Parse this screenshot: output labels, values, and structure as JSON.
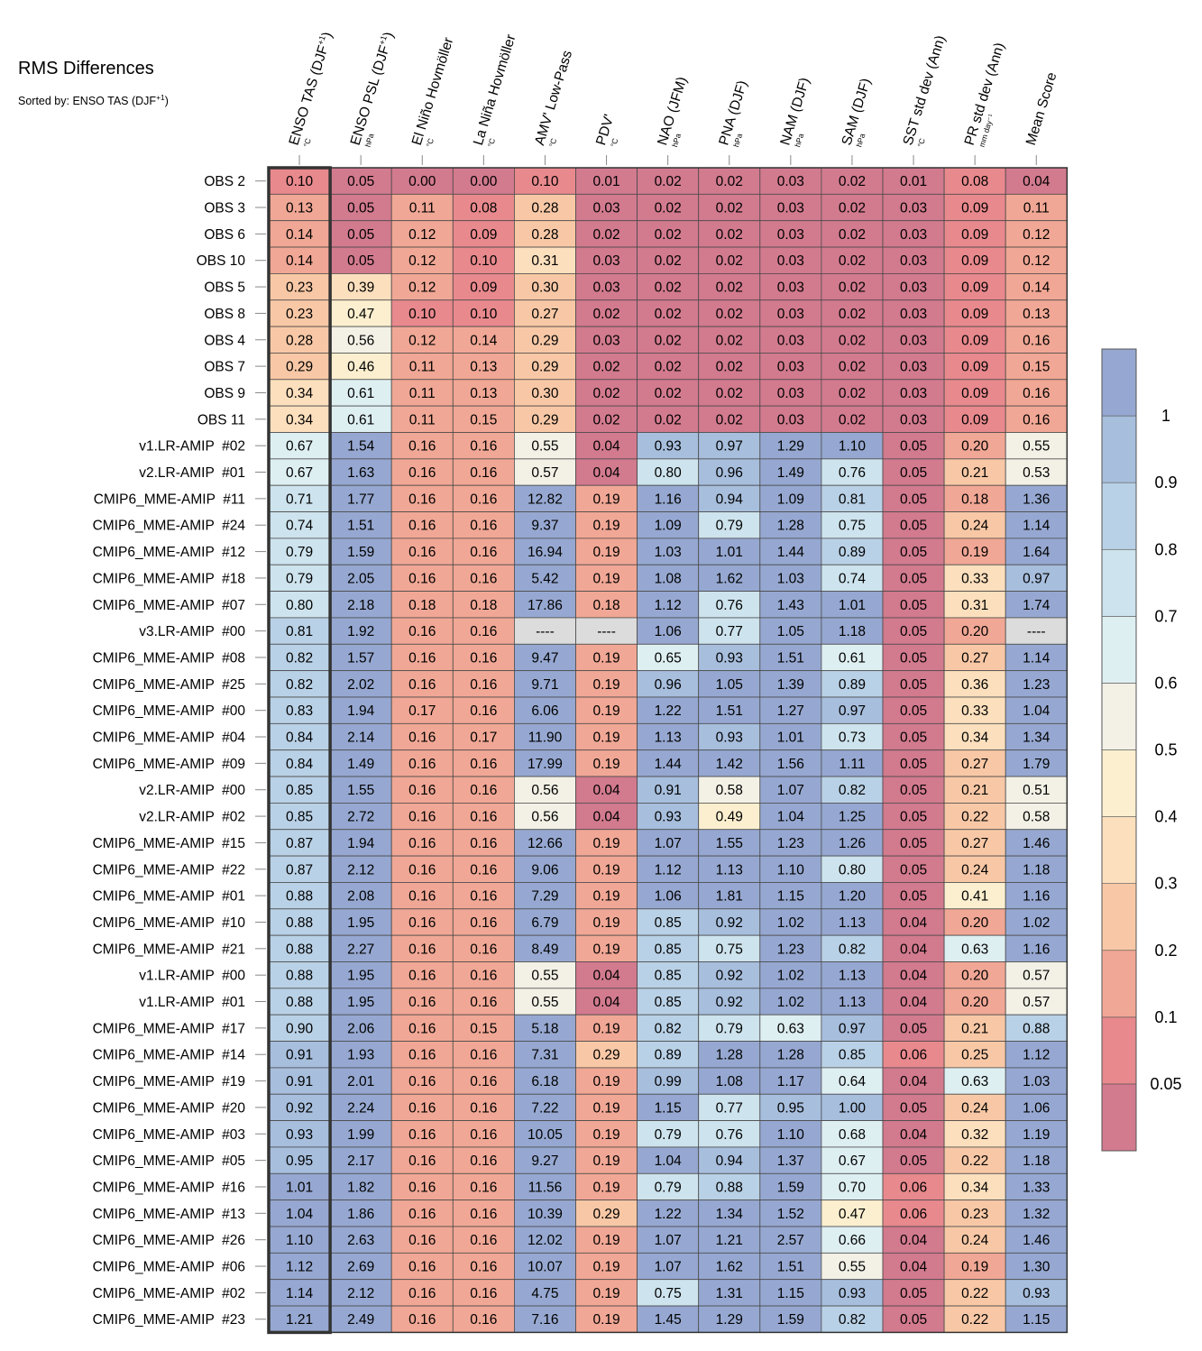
{
  "title": "RMS Differences",
  "subtitle": "Sorted by: ENSO TAS (DJF",
  "subtitle_sup": "+1",
  "subtitle_end": ")",
  "chart_data": {
    "type": "heatmap",
    "title": "RMS Differences",
    "columns": [
      {
        "name": "ENSO TAS (DJF",
        "sup": "+1",
        "end": ")",
        "unit": "°C"
      },
      {
        "name": "ENSO PSL (DJF",
        "sup": "+1",
        "end": ")",
        "unit": "hPa"
      },
      {
        "name": "El Niño Hovmöller",
        "sup": "",
        "end": "",
        "unit": "°C"
      },
      {
        "name": "La Niña Hovmöller",
        "sup": "",
        "end": "",
        "unit": "°C"
      },
      {
        "name": "AMV' Low-Pass",
        "sup": "",
        "end": "",
        "unit": "°C"
      },
      {
        "name": "PDV'",
        "sup": "",
        "end": "",
        "unit": "°C"
      },
      {
        "name": "NAO (JFM)",
        "sup": "",
        "end": "",
        "unit": "hPa"
      },
      {
        "name": "PNA (DJF)",
        "sup": "",
        "end": "",
        "unit": "hPa"
      },
      {
        "name": "NAM (DJF)",
        "sup": "",
        "end": "",
        "unit": "hPa"
      },
      {
        "name": "SAM (DJF)",
        "sup": "",
        "end": "",
        "unit": "hPa"
      },
      {
        "name": "SST std dev (Ann)",
        "sup": "",
        "end": "",
        "unit": "°C"
      },
      {
        "name": "PR std dev (Ann)",
        "sup": "",
        "end": "",
        "unit": "mm day⁻¹"
      },
      {
        "name": "Mean Score",
        "sup": "",
        "end": "",
        "unit": ""
      }
    ],
    "rows": [
      {
        "label": "OBS 2",
        "values": [
          "0.10",
          "0.05",
          "0.00",
          "0.00",
          "0.10",
          "0.01",
          "0.02",
          "0.02",
          "0.03",
          "0.02",
          "0.01",
          "0.08",
          "0.04"
        ]
      },
      {
        "label": "OBS 3",
        "values": [
          "0.13",
          "0.05",
          "0.11",
          "0.08",
          "0.28",
          "0.03",
          "0.02",
          "0.02",
          "0.03",
          "0.02",
          "0.03",
          "0.09",
          "0.11"
        ]
      },
      {
        "label": "OBS 6",
        "values": [
          "0.14",
          "0.05",
          "0.12",
          "0.09",
          "0.28",
          "0.02",
          "0.02",
          "0.02",
          "0.03",
          "0.02",
          "0.03",
          "0.09",
          "0.12"
        ]
      },
      {
        "label": "OBS 10",
        "values": [
          "0.14",
          "0.05",
          "0.12",
          "0.10",
          "0.31",
          "0.03",
          "0.02",
          "0.02",
          "0.03",
          "0.02",
          "0.03",
          "0.09",
          "0.12"
        ]
      },
      {
        "label": "OBS 5",
        "values": [
          "0.23",
          "0.39",
          "0.12",
          "0.09",
          "0.30",
          "0.03",
          "0.02",
          "0.02",
          "0.03",
          "0.02",
          "0.03",
          "0.09",
          "0.14"
        ]
      },
      {
        "label": "OBS 8",
        "values": [
          "0.23",
          "0.47",
          "0.10",
          "0.10",
          "0.27",
          "0.02",
          "0.02",
          "0.02",
          "0.03",
          "0.02",
          "0.03",
          "0.09",
          "0.13"
        ]
      },
      {
        "label": "OBS 4",
        "values": [
          "0.28",
          "0.56",
          "0.12",
          "0.14",
          "0.29",
          "0.03",
          "0.02",
          "0.02",
          "0.03",
          "0.02",
          "0.03",
          "0.09",
          "0.16"
        ]
      },
      {
        "label": "OBS 7",
        "values": [
          "0.29",
          "0.46",
          "0.11",
          "0.13",
          "0.29",
          "0.02",
          "0.02",
          "0.02",
          "0.03",
          "0.02",
          "0.03",
          "0.09",
          "0.15"
        ]
      },
      {
        "label": "OBS 9",
        "values": [
          "0.34",
          "0.61",
          "0.11",
          "0.13",
          "0.30",
          "0.02",
          "0.02",
          "0.02",
          "0.03",
          "0.02",
          "0.03",
          "0.09",
          "0.16"
        ]
      },
      {
        "label": "OBS 11",
        "values": [
          "0.34",
          "0.61",
          "0.11",
          "0.15",
          "0.29",
          "0.02",
          "0.02",
          "0.02",
          "0.03",
          "0.02",
          "0.03",
          "0.09",
          "0.16"
        ]
      },
      {
        "label": "v1.LR-AMIP  #02",
        "values": [
          "0.67",
          "1.54",
          "0.16",
          "0.16",
          "0.55",
          "0.04",
          "0.93",
          "0.97",
          "1.29",
          "1.10",
          "0.05",
          "0.20",
          "0.55"
        ]
      },
      {
        "label": "v2.LR-AMIP  #01",
        "values": [
          "0.67",
          "1.63",
          "0.16",
          "0.16",
          "0.57",
          "0.04",
          "0.80",
          "0.96",
          "1.49",
          "0.76",
          "0.05",
          "0.21",
          "0.53"
        ]
      },
      {
        "label": "CMIP6_MME-AMIP  #11",
        "values": [
          "0.71",
          "1.77",
          "0.16",
          "0.16",
          "12.82",
          "0.19",
          "1.16",
          "0.94",
          "1.09",
          "0.81",
          "0.05",
          "0.18",
          "1.36"
        ]
      },
      {
        "label": "CMIP6_MME-AMIP  #24",
        "values": [
          "0.74",
          "1.51",
          "0.16",
          "0.16",
          "9.37",
          "0.19",
          "1.09",
          "0.79",
          "1.28",
          "0.75",
          "0.05",
          "0.24",
          "1.14"
        ]
      },
      {
        "label": "CMIP6_MME-AMIP  #12",
        "values": [
          "0.79",
          "1.59",
          "0.16",
          "0.16",
          "16.94",
          "0.19",
          "1.03",
          "1.01",
          "1.44",
          "0.89",
          "0.05",
          "0.19",
          "1.64"
        ]
      },
      {
        "label": "CMIP6_MME-AMIP  #18",
        "values": [
          "0.79",
          "2.05",
          "0.16",
          "0.16",
          "5.42",
          "0.19",
          "1.08",
          "1.62",
          "1.03",
          "0.74",
          "0.05",
          "0.33",
          "0.97"
        ]
      },
      {
        "label": "CMIP6_MME-AMIP  #07",
        "values": [
          "0.80",
          "2.18",
          "0.18",
          "0.18",
          "17.86",
          "0.18",
          "1.12",
          "0.76",
          "1.43",
          "1.01",
          "0.05",
          "0.31",
          "1.74"
        ]
      },
      {
        "label": "v3.LR-AMIP  #00",
        "values": [
          "0.81",
          "1.92",
          "0.16",
          "0.16",
          "----",
          "----",
          "1.06",
          "0.77",
          "1.05",
          "1.18",
          "0.05",
          "0.20",
          "----"
        ]
      },
      {
        "label": "CMIP6_MME-AMIP  #08",
        "values": [
          "0.82",
          "1.57",
          "0.16",
          "0.16",
          "9.47",
          "0.19",
          "0.65",
          "0.93",
          "1.51",
          "0.61",
          "0.05",
          "0.27",
          "1.14"
        ]
      },
      {
        "label": "CMIP6_MME-AMIP  #25",
        "values": [
          "0.82",
          "2.02",
          "0.16",
          "0.16",
          "9.71",
          "0.19",
          "0.96",
          "1.05",
          "1.39",
          "0.89",
          "0.05",
          "0.36",
          "1.23"
        ]
      },
      {
        "label": "CMIP6_MME-AMIP  #00",
        "values": [
          "0.83",
          "1.94",
          "0.17",
          "0.16",
          "6.06",
          "0.19",
          "1.22",
          "1.51",
          "1.27",
          "0.97",
          "0.05",
          "0.33",
          "1.04"
        ]
      },
      {
        "label": "CMIP6_MME-AMIP  #04",
        "values": [
          "0.84",
          "2.14",
          "0.16",
          "0.17",
          "11.90",
          "0.19",
          "1.13",
          "0.93",
          "1.01",
          "0.73",
          "0.05",
          "0.34",
          "1.34"
        ]
      },
      {
        "label": "CMIP6_MME-AMIP  #09",
        "values": [
          "0.84",
          "1.49",
          "0.16",
          "0.16",
          "17.99",
          "0.19",
          "1.44",
          "1.42",
          "1.56",
          "1.11",
          "0.05",
          "0.27",
          "1.79"
        ]
      },
      {
        "label": "v2.LR-AMIP  #00",
        "values": [
          "0.85",
          "1.55",
          "0.16",
          "0.16",
          "0.56",
          "0.04",
          "0.91",
          "0.58",
          "1.07",
          "0.82",
          "0.05",
          "0.21",
          "0.51"
        ]
      },
      {
        "label": "v2.LR-AMIP  #02",
        "values": [
          "0.85",
          "2.72",
          "0.16",
          "0.16",
          "0.56",
          "0.04",
          "0.93",
          "0.49",
          "1.04",
          "1.25",
          "0.05",
          "0.22",
          "0.58"
        ]
      },
      {
        "label": "CMIP6_MME-AMIP  #15",
        "values": [
          "0.87",
          "1.94",
          "0.16",
          "0.16",
          "12.66",
          "0.19",
          "1.07",
          "1.55",
          "1.23",
          "1.26",
          "0.05",
          "0.27",
          "1.46"
        ]
      },
      {
        "label": "CMIP6_MME-AMIP  #22",
        "values": [
          "0.87",
          "2.12",
          "0.16",
          "0.16",
          "9.06",
          "0.19",
          "1.12",
          "1.13",
          "1.10",
          "0.80",
          "0.05",
          "0.24",
          "1.18"
        ]
      },
      {
        "label": "CMIP6_MME-AMIP  #01",
        "values": [
          "0.88",
          "2.08",
          "0.16",
          "0.16",
          "7.29",
          "0.19",
          "1.06",
          "1.81",
          "1.15",
          "1.20",
          "0.05",
          "0.41",
          "1.16"
        ]
      },
      {
        "label": "CMIP6_MME-AMIP  #10",
        "values": [
          "0.88",
          "1.95",
          "0.16",
          "0.16",
          "6.79",
          "0.19",
          "0.85",
          "0.92",
          "1.02",
          "1.13",
          "0.04",
          "0.20",
          "1.02"
        ]
      },
      {
        "label": "CMIP6_MME-AMIP  #21",
        "values": [
          "0.88",
          "2.27",
          "0.16",
          "0.16",
          "8.49",
          "0.19",
          "0.85",
          "0.75",
          "1.23",
          "0.82",
          "0.04",
          "0.63",
          "1.16"
        ]
      },
      {
        "label": "v1.LR-AMIP  #00",
        "values": [
          "0.88",
          "1.95",
          "0.16",
          "0.16",
          "0.55",
          "0.04",
          "0.85",
          "0.92",
          "1.02",
          "1.13",
          "0.04",
          "0.20",
          "0.57"
        ]
      },
      {
        "label": "v1.LR-AMIP  #01",
        "values": [
          "0.88",
          "1.95",
          "0.16",
          "0.16",
          "0.55",
          "0.04",
          "0.85",
          "0.92",
          "1.02",
          "1.13",
          "0.04",
          "0.20",
          "0.57"
        ]
      },
      {
        "label": "CMIP6_MME-AMIP  #17",
        "values": [
          "0.90",
          "2.06",
          "0.16",
          "0.15",
          "5.18",
          "0.19",
          "0.82",
          "0.79",
          "0.63",
          "0.97",
          "0.05",
          "0.21",
          "0.88"
        ]
      },
      {
        "label": "CMIP6_MME-AMIP  #14",
        "values": [
          "0.91",
          "1.93",
          "0.16",
          "0.16",
          "7.31",
          "0.29",
          "0.89",
          "1.28",
          "1.28",
          "0.85",
          "0.06",
          "0.25",
          "1.12"
        ]
      },
      {
        "label": "CMIP6_MME-AMIP  #19",
        "values": [
          "0.91",
          "2.01",
          "0.16",
          "0.16",
          "6.18",
          "0.19",
          "0.99",
          "1.08",
          "1.17",
          "0.64",
          "0.04",
          "0.63",
          "1.03"
        ]
      },
      {
        "label": "CMIP6_MME-AMIP  #20",
        "values": [
          "0.92",
          "2.24",
          "0.16",
          "0.16",
          "7.22",
          "0.19",
          "1.15",
          "0.77",
          "0.95",
          "1.00",
          "0.05",
          "0.24",
          "1.06"
        ]
      },
      {
        "label": "CMIP6_MME-AMIP  #03",
        "values": [
          "0.93",
          "1.99",
          "0.16",
          "0.16",
          "10.05",
          "0.19",
          "0.79",
          "0.76",
          "1.10",
          "0.68",
          "0.04",
          "0.32",
          "1.19"
        ]
      },
      {
        "label": "CMIP6_MME-AMIP  #05",
        "values": [
          "0.95",
          "2.17",
          "0.16",
          "0.16",
          "9.27",
          "0.19",
          "1.04",
          "0.94",
          "1.37",
          "0.67",
          "0.05",
          "0.22",
          "1.18"
        ]
      },
      {
        "label": "CMIP6_MME-AMIP  #16",
        "values": [
          "1.01",
          "1.82",
          "0.16",
          "0.16",
          "11.56",
          "0.19",
          "0.79",
          "0.88",
          "1.59",
          "0.70",
          "0.06",
          "0.34",
          "1.33"
        ]
      },
      {
        "label": "CMIP6_MME-AMIP  #13",
        "values": [
          "1.04",
          "1.86",
          "0.16",
          "0.16",
          "10.39",
          "0.29",
          "1.22",
          "1.34",
          "1.52",
          "0.47",
          "0.06",
          "0.23",
          "1.32"
        ]
      },
      {
        "label": "CMIP6_MME-AMIP  #26",
        "values": [
          "1.10",
          "2.63",
          "0.16",
          "0.16",
          "12.02",
          "0.19",
          "1.07",
          "1.21",
          "2.57",
          "0.66",
          "0.04",
          "0.24",
          "1.46"
        ]
      },
      {
        "label": "CMIP6_MME-AMIP  #06",
        "values": [
          "1.12",
          "2.69",
          "0.16",
          "0.16",
          "10.07",
          "0.19",
          "1.07",
          "1.62",
          "1.51",
          "0.55",
          "0.04",
          "0.19",
          "1.30"
        ]
      },
      {
        "label": "CMIP6_MME-AMIP  #02",
        "values": [
          "1.14",
          "2.12",
          "0.16",
          "0.16",
          "4.75",
          "0.19",
          "0.75",
          "1.31",
          "1.15",
          "0.93",
          "0.05",
          "0.22",
          "0.93"
        ]
      },
      {
        "label": "CMIP6_MME-AMIP  #23",
        "values": [
          "1.21",
          "2.49",
          "0.16",
          "0.16",
          "7.16",
          "0.19",
          "1.45",
          "1.29",
          "1.59",
          "0.82",
          "0.05",
          "0.22",
          "1.15"
        ]
      }
    ],
    "highlight_column": 0,
    "colorbar": {
      "ticks": [
        "1",
        "0.9",
        "0.8",
        "0.7",
        "0.6",
        "0.5",
        "0.4",
        "0.3",
        "0.2",
        "0.1",
        "0.05"
      ],
      "bins": [
        {
          "max": 0.05,
          "color": "#d27a8e"
        },
        {
          "max": 0.1,
          "color": "#e8898d"
        },
        {
          "max": 0.2,
          "color": "#f1a795"
        },
        {
          "max": 0.3,
          "color": "#f8c8a6"
        },
        {
          "max": 0.4,
          "color": "#fcdfbd"
        },
        {
          "max": 0.5,
          "color": "#fcefcf"
        },
        {
          "max": 0.6,
          "color": "#f3f1e6"
        },
        {
          "max": 0.7,
          "color": "#deeff2"
        },
        {
          "max": 0.8,
          "color": "#cde3ed"
        },
        {
          "max": 0.9,
          "color": "#b9d1e6"
        },
        {
          "max": 1.0,
          "color": "#a7bedd"
        },
        {
          "max": 1000000000.0,
          "color": "#96a8d1"
        }
      ],
      "missing_color": "#dcdcdc"
    }
  }
}
